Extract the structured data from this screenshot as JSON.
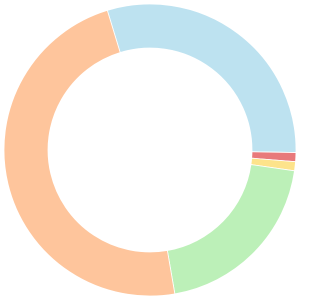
{
  "chart_data": {
    "type": "donut",
    "values": [
      30,
      1,
      1,
      20,
      48
    ],
    "colors": [
      "#bde2f0",
      "#e8797b",
      "#fde38b",
      "#bcf0b8",
      "#fec59c"
    ]
  }
}
